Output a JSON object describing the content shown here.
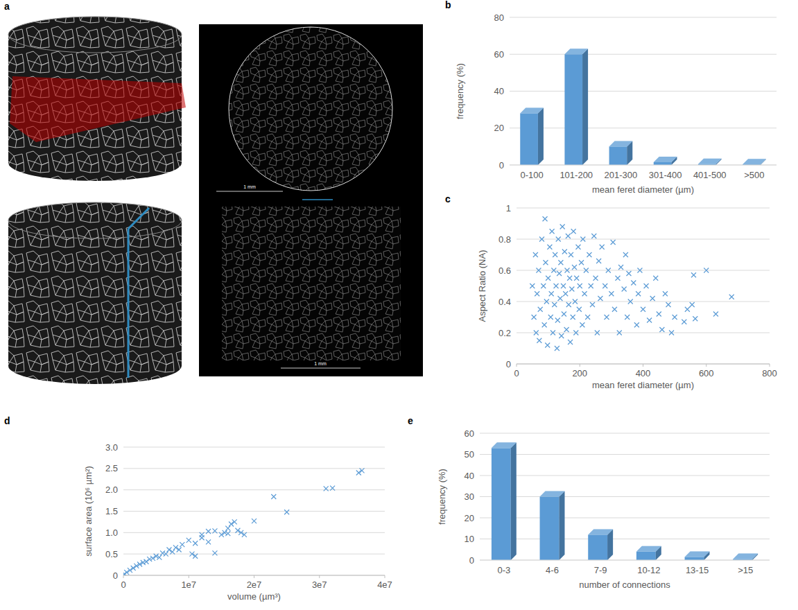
{
  "images": {
    "panel": "a",
    "scale_bars": [
      "1 mm",
      "1 mm"
    ]
  },
  "chart_data": [
    {
      "panel": "b",
      "type": "bar",
      "categories": [
        "0-100",
        "101-200",
        "201-300",
        "301-400",
        "401-500",
        ">500"
      ],
      "values": [
        28,
        60,
        10,
        1.5,
        0.5,
        0.3
      ],
      "color": "#5b9bd5",
      "ylim": [
        0,
        80
      ],
      "yticks": [
        0,
        20,
        40,
        60,
        80
      ],
      "grid": true,
      "xlabel": "mean feret diameter (µm)",
      "ylabel": "frequency (%)"
    },
    {
      "panel": "c",
      "type": "scatter",
      "marker": "x",
      "color": "#5b9bd5",
      "grid": true,
      "xlabel": "mean feret diameter (µm)",
      "ylabel": "Aspect Ratio (NA)",
      "xlim": [
        0,
        800
      ],
      "xticks": [
        0,
        200,
        400,
        600,
        800
      ],
      "ylim": [
        0,
        1
      ],
      "yticks": [
        0,
        0.2,
        0.4,
        0.6,
        0.8,
        1
      ],
      "x": [
        50,
        55,
        60,
        62,
        65,
        70,
        72,
        75,
        80,
        85,
        88,
        90,
        92,
        95,
        98,
        100,
        105,
        108,
        110,
        112,
        115,
        118,
        120,
        122,
        125,
        128,
        130,
        132,
        135,
        138,
        140,
        142,
        145,
        148,
        150,
        152,
        155,
        158,
        160,
        163,
        165,
        168,
        170,
        172,
        175,
        178,
        180,
        183,
        185,
        188,
        190,
        195,
        198,
        200,
        205,
        208,
        210,
        215,
        220,
        225,
        230,
        235,
        240,
        245,
        250,
        255,
        260,
        265,
        270,
        280,
        285,
        290,
        300,
        305,
        310,
        320,
        325,
        330,
        340,
        345,
        350,
        355,
        360,
        370,
        380,
        385,
        390,
        400,
        410,
        420,
        430,
        440,
        450,
        460,
        470,
        480,
        490,
        500,
        530,
        540,
        555,
        560,
        565,
        600,
        630,
        680
      ],
      "values": [
        0.5,
        0.3,
        0.7,
        0.2,
        0.45,
        0.6,
        0.15,
        0.35,
        0.8,
        0.5,
        0.25,
        0.93,
        0.65,
        0.4,
        0.12,
        0.55,
        0.75,
        0.3,
        0.45,
        0.85,
        0.2,
        0.6,
        0.38,
        0.7,
        0.5,
        0.1,
        0.28,
        0.8,
        0.58,
        0.42,
        0.65,
        0.18,
        0.88,
        0.5,
        0.32,
        0.72,
        0.45,
        0.22,
        0.6,
        0.82,
        0.38,
        0.55,
        0.14,
        0.7,
        0.48,
        0.3,
        0.85,
        0.62,
        0.4,
        0.2,
        0.55,
        0.75,
        0.35,
        0.5,
        0.65,
        0.25,
        0.8,
        0.45,
        0.6,
        0.3,
        0.7,
        0.5,
        0.38,
        0.82,
        0.55,
        0.2,
        0.66,
        0.42,
        0.75,
        0.5,
        0.3,
        0.6,
        0.45,
        0.78,
        0.35,
        0.55,
        0.2,
        0.62,
        0.48,
        0.7,
        0.3,
        0.58,
        0.4,
        0.52,
        0.25,
        0.45,
        0.6,
        0.35,
        0.5,
        0.28,
        0.42,
        0.55,
        0.32,
        0.22,
        0.45,
        0.38,
        0.2,
        0.3,
        0.27,
        0.35,
        0.38,
        0.57,
        0.29,
        0.6,
        0.32,
        0.43
      ]
    },
    {
      "panel": "d",
      "type": "scatter",
      "marker": "x",
      "color": "#5b9bd5",
      "grid": true,
      "xlabel": "volume (µm³)",
      "ylabel": "surface area (10⁶ µm²)",
      "xlim": [
        0,
        40000000
      ],
      "xticks": [
        0,
        {
          "value": 10000000,
          "label": "1e7"
        },
        {
          "value": 20000000,
          "label": "2e7"
        },
        {
          "value": 30000000,
          "label": "3e7"
        },
        {
          "value": 40000000,
          "label": "4e7"
        }
      ],
      "ylim": [
        0,
        3
      ],
      "yticks": [
        0,
        0.5,
        {
          "value": 1,
          "label": "1.0"
        },
        1.5,
        {
          "value": 2,
          "label": "2.0"
        },
        2.5,
        {
          "value": 3,
          "label": "3.0"
        }
      ],
      "x": [
        36500000,
        36000000,
        31000000,
        32000000,
        23000000,
        25000000,
        20000000,
        18000000,
        18500000,
        17000000,
        16500000,
        16000000,
        15500000,
        15000000,
        14000000,
        13000000,
        14000000,
        12000000,
        11000000,
        10000000,
        10500000,
        11000000,
        9000000,
        8000000,
        7000000,
        6000000,
        5000000,
        4000000,
        3000000,
        2000000,
        1500000,
        1000000,
        500000,
        200000,
        100000,
        8500000,
        7500000,
        6500000,
        5500000,
        4500000,
        3500000,
        2500000,
        12000000,
        13000000,
        16000000,
        17500000
      ],
      "values": [
        2.45,
        2.4,
        2.03,
        2.04,
        1.84,
        1.48,
        1.27,
        1.0,
        0.95,
        1.25,
        1.2,
        1.1,
        1.0,
        0.95,
        1.04,
        1.03,
        0.52,
        0.88,
        0.75,
        0.82,
        0.5,
        0.45,
        0.72,
        0.65,
        0.6,
        0.52,
        0.45,
        0.38,
        0.3,
        0.22,
        0.17,
        0.12,
        0.07,
        0.03,
        0.02,
        0.6,
        0.55,
        0.5,
        0.42,
        0.4,
        0.32,
        0.26,
        0.95,
        0.78,
        0.98,
        1.05
      ]
    },
    {
      "panel": "e",
      "type": "bar",
      "categories": [
        "0-3",
        "4-6",
        "7-9",
        "10-12",
        "13-15",
        ">15"
      ],
      "values": [
        53,
        30,
        12,
        4,
        1.5,
        0.5
      ],
      "color": "#5b9bd5",
      "ylim": [
        0,
        60
      ],
      "yticks": [
        0,
        10,
        20,
        30,
        40,
        50,
        60
      ],
      "grid": true,
      "xlabel": "number of connections",
      "ylabel": "frequency (%)"
    }
  ]
}
